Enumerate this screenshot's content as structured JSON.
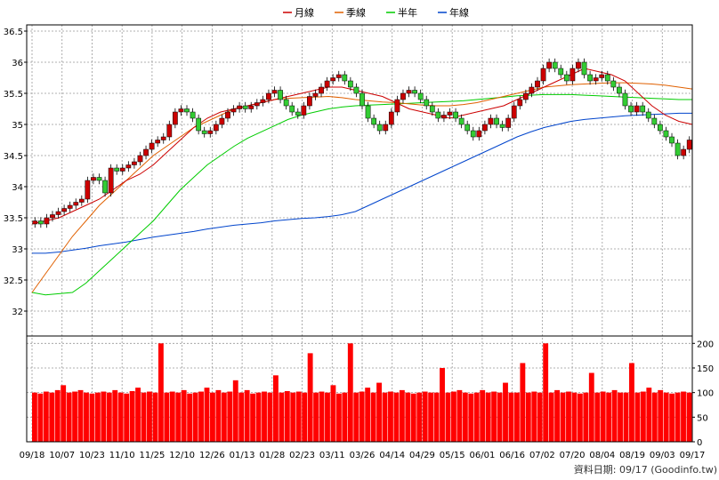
{
  "chart_data": {
    "type": "candlestick+volume",
    "legend": [
      {
        "name": "月線",
        "color": "#cc0000"
      },
      {
        "name": "季線",
        "color": "#e06000"
      },
      {
        "name": "半年",
        "color": "#00cc00"
      },
      {
        "name": "年線",
        "color": "#0044cc"
      }
    ],
    "price_axis": {
      "ticks": [
        32,
        32.5,
        33,
        33.5,
        34,
        34.5,
        35,
        35.5,
        36,
        36.5
      ],
      "ylim": [
        31.6,
        36.6
      ]
    },
    "volume_axis": {
      "ticks": [
        0,
        50,
        100,
        150,
        200
      ],
      "ylim": [
        0,
        215
      ]
    },
    "x_ticks": [
      "09/18",
      "10/07",
      "10/23",
      "11/10",
      "11/25",
      "12/10",
      "12/26",
      "01/13",
      "01/28",
      "02/23",
      "03/11",
      "03/26",
      "04/14",
      "04/29",
      "05/15",
      "06/01",
      "06/16",
      "07/02",
      "07/20",
      "08/04",
      "08/19",
      "09/03",
      "09/17"
    ],
    "close_series": [
      33.45,
      33.4,
      33.5,
      33.55,
      33.6,
      33.65,
      33.7,
      33.75,
      33.8,
      34.1,
      34.15,
      34.1,
      33.9,
      34.3,
      34.25,
      34.3,
      34.35,
      34.4,
      34.5,
      34.6,
      34.7,
      34.75,
      34.8,
      35.0,
      35.2,
      35.25,
      35.2,
      35.1,
      34.9,
      34.85,
      34.9,
      35.0,
      35.1,
      35.2,
      35.25,
      35.3,
      35.25,
      35.3,
      35.35,
      35.4,
      35.5,
      35.55,
      35.4,
      35.3,
      35.2,
      35.15,
      35.3,
      35.45,
      35.5,
      35.6,
      35.7,
      35.75,
      35.8,
      35.7,
      35.6,
      35.5,
      35.3,
      35.1,
      35.0,
      34.9,
      35.0,
      35.2,
      35.4,
      35.5,
      35.55,
      35.5,
      35.4,
      35.3,
      35.2,
      35.1,
      35.15,
      35.2,
      35.1,
      35.0,
      34.9,
      34.8,
      34.9,
      35.0,
      35.1,
      35.0,
      34.95,
      35.1,
      35.3,
      35.4,
      35.5,
      35.6,
      35.7,
      35.9,
      36.0,
      35.9,
      35.8,
      35.7,
      35.9,
      36.0,
      35.8,
      35.7,
      35.75,
      35.8,
      35.7,
      35.6,
      35.5,
      35.3,
      35.2,
      35.3,
      35.2,
      35.1,
      35.0,
      34.9,
      34.8,
      34.7,
      34.5,
      34.6,
      34.75
    ],
    "ma_month": [
      33.4,
      33.45,
      33.5,
      33.6,
      33.7,
      33.8,
      33.95,
      34.1,
      34.2,
      34.35,
      34.55,
      34.75,
      34.95,
      35.1,
      35.2,
      35.25,
      35.3,
      35.35,
      35.4,
      35.45,
      35.5,
      35.55,
      35.6,
      35.6,
      35.55,
      35.5,
      35.45,
      35.35,
      35.25,
      35.2,
      35.15,
      35.1,
      35.15,
      35.2,
      35.25,
      35.3,
      35.4,
      35.5,
      35.6,
      35.7,
      35.8,
      35.9,
      35.85,
      35.8,
      35.7,
      35.5,
      35.3,
      35.15,
      35.05,
      35.0
    ],
    "ma_quarter": [
      32.3,
      32.6,
      32.9,
      33.2,
      33.45,
      33.7,
      33.9,
      34.1,
      34.3,
      34.5,
      34.65,
      34.8,
      34.95,
      35.05,
      35.15,
      35.25,
      35.3,
      35.35,
      35.4,
      35.42,
      35.43,
      35.44,
      35.45,
      35.43,
      35.4,
      35.38,
      35.36,
      35.35,
      35.33,
      35.31,
      35.3,
      35.3,
      35.32,
      35.35,
      35.4,
      35.45,
      35.5,
      35.55,
      35.6,
      35.62,
      35.64,
      35.65,
      35.66,
      35.67,
      35.67,
      35.66,
      35.65,
      35.63,
      35.6,
      35.57
    ],
    "ma_half": [
      32.3,
      32.26,
      32.28,
      32.3,
      32.45,
      32.65,
      32.85,
      33.05,
      33.25,
      33.45,
      33.7,
      33.95,
      34.15,
      34.35,
      34.5,
      34.65,
      34.78,
      34.88,
      34.98,
      35.08,
      35.15,
      35.2,
      35.25,
      35.28,
      35.3,
      35.31,
      35.32,
      35.33,
      35.34,
      35.35,
      35.36,
      35.37,
      35.38,
      35.4,
      35.42,
      35.44,
      35.46,
      35.47,
      35.48,
      35.48,
      35.48,
      35.47,
      35.46,
      35.45,
      35.44,
      35.43,
      35.42,
      35.41,
      35.4,
      35.4
    ],
    "ma_year": [
      32.93,
      32.93,
      32.95,
      32.98,
      33.01,
      33.05,
      33.08,
      33.11,
      33.15,
      33.19,
      33.22,
      33.25,
      33.28,
      33.32,
      33.35,
      33.38,
      33.4,
      33.42,
      33.45,
      33.47,
      33.49,
      33.5,
      33.52,
      33.55,
      33.6,
      33.7,
      33.8,
      33.9,
      34.0,
      34.1,
      34.2,
      34.3,
      34.4,
      34.5,
      34.6,
      34.7,
      34.8,
      34.88,
      34.95,
      35.0,
      35.05,
      35.08,
      35.1,
      35.12,
      35.14,
      35.15,
      35.16,
      35.17,
      35.18,
      35.18
    ],
    "volume_series": [
      100,
      98,
      102,
      100,
      105,
      115,
      100,
      102,
      105,
      100,
      98,
      100,
      102,
      100,
      105,
      100,
      98,
      103,
      110,
      100,
      102,
      100,
      200,
      100,
      102,
      100,
      105,
      98,
      100,
      102,
      110,
      100,
      105,
      100,
      102,
      125,
      100,
      105,
      98,
      100,
      102,
      100,
      135,
      100,
      103,
      100,
      102,
      100,
      180,
      100,
      102,
      100,
      115,
      98,
      100,
      200,
      100,
      102,
      110,
      100,
      120,
      100,
      102,
      100,
      105,
      100,
      98,
      100,
      102,
      100,
      100,
      150,
      100,
      102,
      105,
      100,
      98,
      100,
      105,
      100,
      102,
      100,
      120,
      100,
      100,
      160,
      100,
      102,
      100,
      200,
      100,
      105,
      100,
      102,
      100,
      98,
      100,
      140,
      100,
      102,
      100,
      105,
      100,
      100,
      160,
      100,
      102,
      110,
      100,
      105,
      100,
      98,
      100,
      102,
      100
    ]
  },
  "source_label": "資料日期: 09/17 (Goodinfo.tw)"
}
